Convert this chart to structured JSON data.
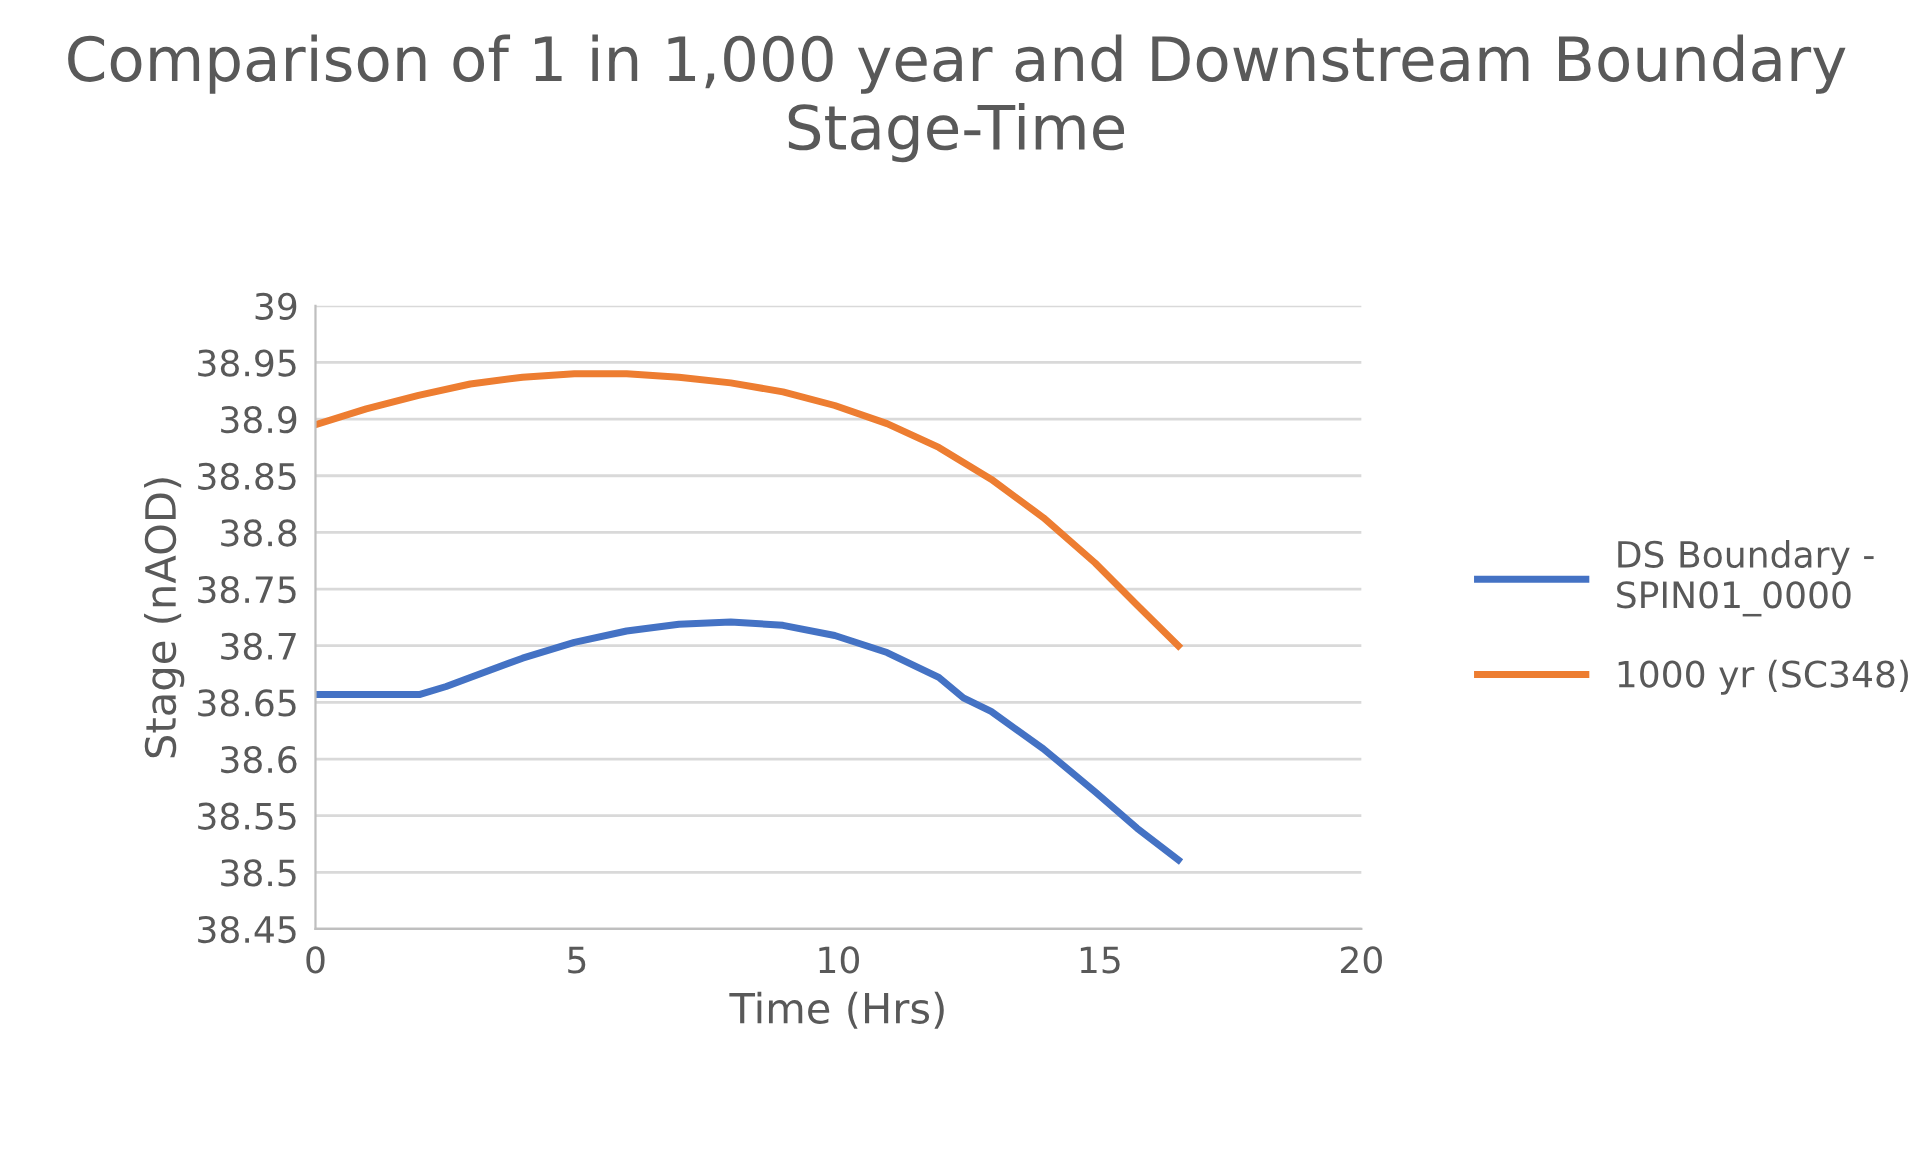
{
  "chart_data": {
    "type": "line",
    "title": "Comparison of 1 in 1,000 year and Downstream Boundary Stage-Time",
    "xlabel": "Time (Hrs)",
    "ylabel": "Stage (nAOD)",
    "xlim": [
      0,
      20
    ],
    "xticks": [
      0,
      5,
      10,
      15,
      20
    ],
    "ylim": [
      38.45,
      39
    ],
    "yticks": [
      38.45,
      38.5,
      38.55,
      38.6,
      38.65,
      38.7,
      38.75,
      38.8,
      38.85,
      38.9,
      38.95,
      39
    ],
    "grid": "y",
    "legend": "right",
    "marker": "none",
    "line_style": "solid",
    "series": [
      {
        "name": "DS Boundary - SPIN01_0000",
        "color": "#4472c4",
        "x": [
          0,
          1,
          2,
          2.5,
          2.96,
          3.96,
          4.95,
          5.95,
          6.95,
          7.94,
          8.94,
          9.93,
          10.93,
          11.92,
          12.39,
          12.92,
          13.92,
          14.91,
          15.71,
          16.5
        ],
        "values": [
          38.657,
          38.657,
          38.657,
          38.664,
          38.672,
          38.689,
          38.703,
          38.713,
          38.719,
          38.721,
          38.718,
          38.709,
          38.694,
          38.672,
          38.654,
          38.642,
          38.609,
          38.571,
          38.539,
          38.511
        ]
      },
      {
        "name": "1000 yr (SC348)",
        "color": "#ed7d31",
        "x": [
          0,
          0.97,
          1.97,
          2.96,
          3.96,
          4.95,
          5.95,
          6.95,
          7.94,
          8.94,
          9.93,
          10.93,
          11.92,
          12.92,
          13.92,
          14.91,
          15.71,
          16.5
        ],
        "values": [
          38.895,
          38.909,
          38.921,
          38.931,
          38.937,
          38.94,
          38.94,
          38.937,
          38.932,
          38.924,
          38.912,
          38.896,
          38.875,
          38.847,
          38.813,
          38.773,
          38.736,
          38.7
        ]
      }
    ]
  }
}
